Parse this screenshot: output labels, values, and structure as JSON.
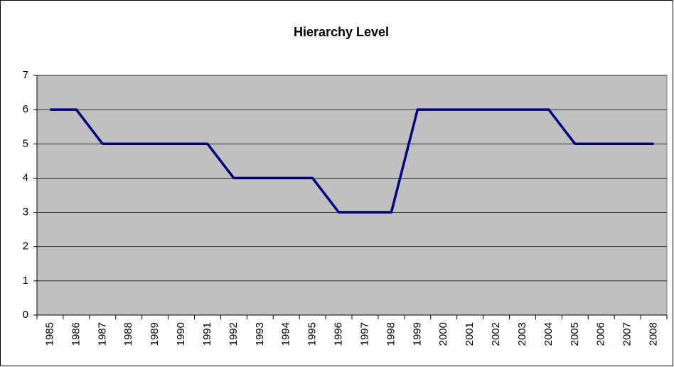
{
  "chart_data": {
    "type": "line",
    "title": "Hierarchy Level",
    "categories": [
      "1985",
      "1986",
      "1987",
      "1988",
      "1989",
      "1990",
      "1991",
      "1992",
      "1993",
      "1994",
      "1995",
      "1996",
      "1997",
      "1998",
      "1999",
      "2000",
      "2001",
      "2002",
      "2003",
      "2004",
      "2005",
      "2006",
      "2007",
      "2008"
    ],
    "values": [
      6,
      6,
      5,
      5,
      5,
      5,
      5,
      4,
      4,
      4,
      4,
      3,
      3,
      3,
      6,
      6,
      6,
      6,
      6,
      6,
      5,
      5,
      5,
      5
    ],
    "color": "#000080",
    "ylim": [
      0,
      7
    ],
    "yticks": [
      0,
      1,
      2,
      3,
      4,
      5,
      6,
      7
    ],
    "grid": true,
    "plot_background": "#c0c0c0"
  }
}
